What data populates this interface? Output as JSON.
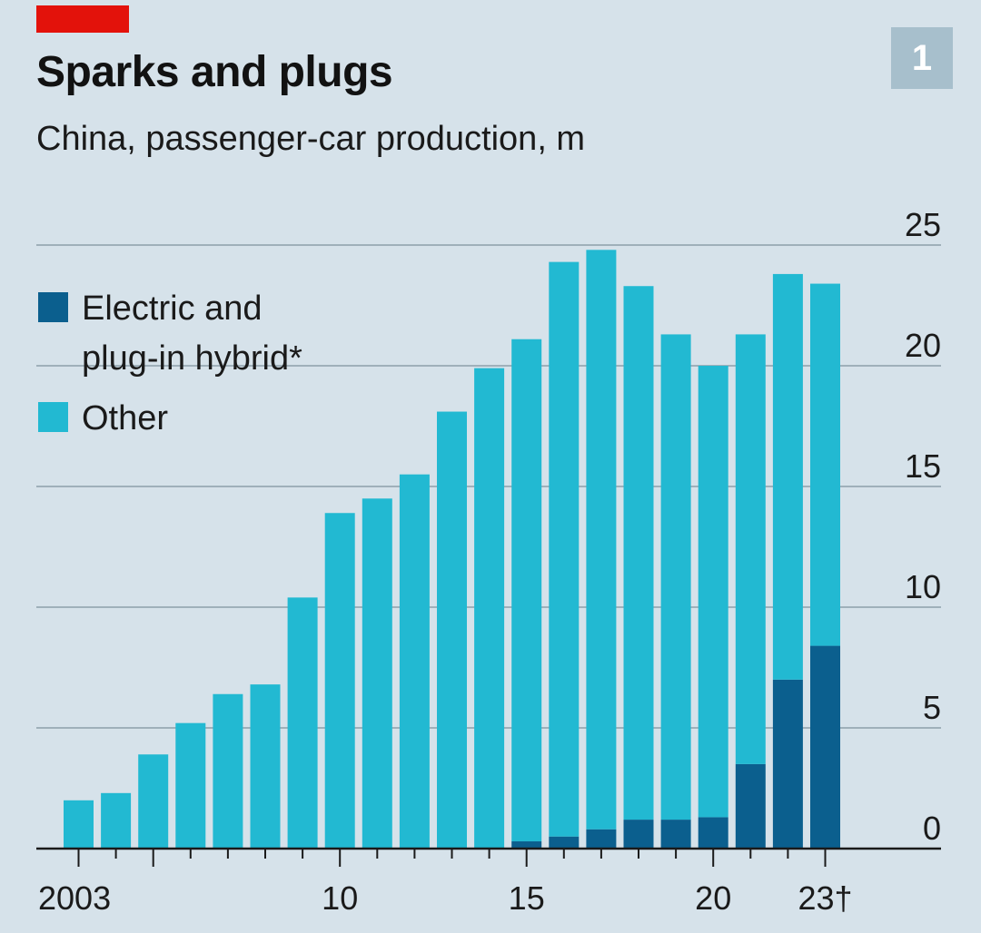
{
  "header": {
    "title": "Sparks and plugs",
    "subtitle": "China, passenger-car production, m",
    "badge": "1"
  },
  "colors": {
    "accent": "#e3120b",
    "electric": "#0b5f8e",
    "other": "#22b9d2",
    "grid": "#9fb0ba",
    "axis": "#1a1a1a"
  },
  "chart_data": {
    "type": "bar",
    "stacked": true,
    "title": "Sparks and plugs",
    "subtitle": "China, passenger-car production, m",
    "categories": [
      "2003",
      "2004",
      "2005",
      "2006",
      "2007",
      "2008",
      "2009",
      "2010",
      "2011",
      "2012",
      "2013",
      "2014",
      "2015",
      "2016",
      "2017",
      "2018",
      "2019",
      "2020",
      "2021",
      "2022",
      "2023"
    ],
    "x_tick_labels": [
      {
        "category": "2003",
        "label": "2003"
      },
      {
        "category": "2010",
        "label": "10"
      },
      {
        "category": "2015",
        "label": "15"
      },
      {
        "category": "2020",
        "label": "20"
      },
      {
        "category": "2023",
        "label": "23†"
      }
    ],
    "series": [
      {
        "name": "Electric and plug-in hybrid*",
        "legend_lines": [
          "Electric and",
          "plug-in hybrid*"
        ],
        "values": [
          0,
          0,
          0,
          0,
          0,
          0,
          0,
          0,
          0,
          0,
          0,
          0,
          0.3,
          0.5,
          0.8,
          1.2,
          1.2,
          1.3,
          3.5,
          7.0,
          8.4
        ]
      },
      {
        "name": "Other",
        "legend_lines": [
          "Other"
        ],
        "values": [
          2.0,
          2.3,
          3.9,
          5.2,
          6.4,
          6.8,
          10.4,
          13.9,
          14.5,
          15.5,
          18.1,
          19.9,
          20.8,
          23.8,
          24.0,
          22.1,
          20.1,
          18.7,
          17.8,
          16.8,
          15.0
        ]
      }
    ],
    "ylim": [
      0,
      25
    ],
    "yticks": [
      0,
      5,
      10,
      15,
      20,
      25
    ],
    "y_axis_side": "right",
    "grid": true,
    "legend_position": "top-left",
    "xlabel": "",
    "ylabel": ""
  }
}
